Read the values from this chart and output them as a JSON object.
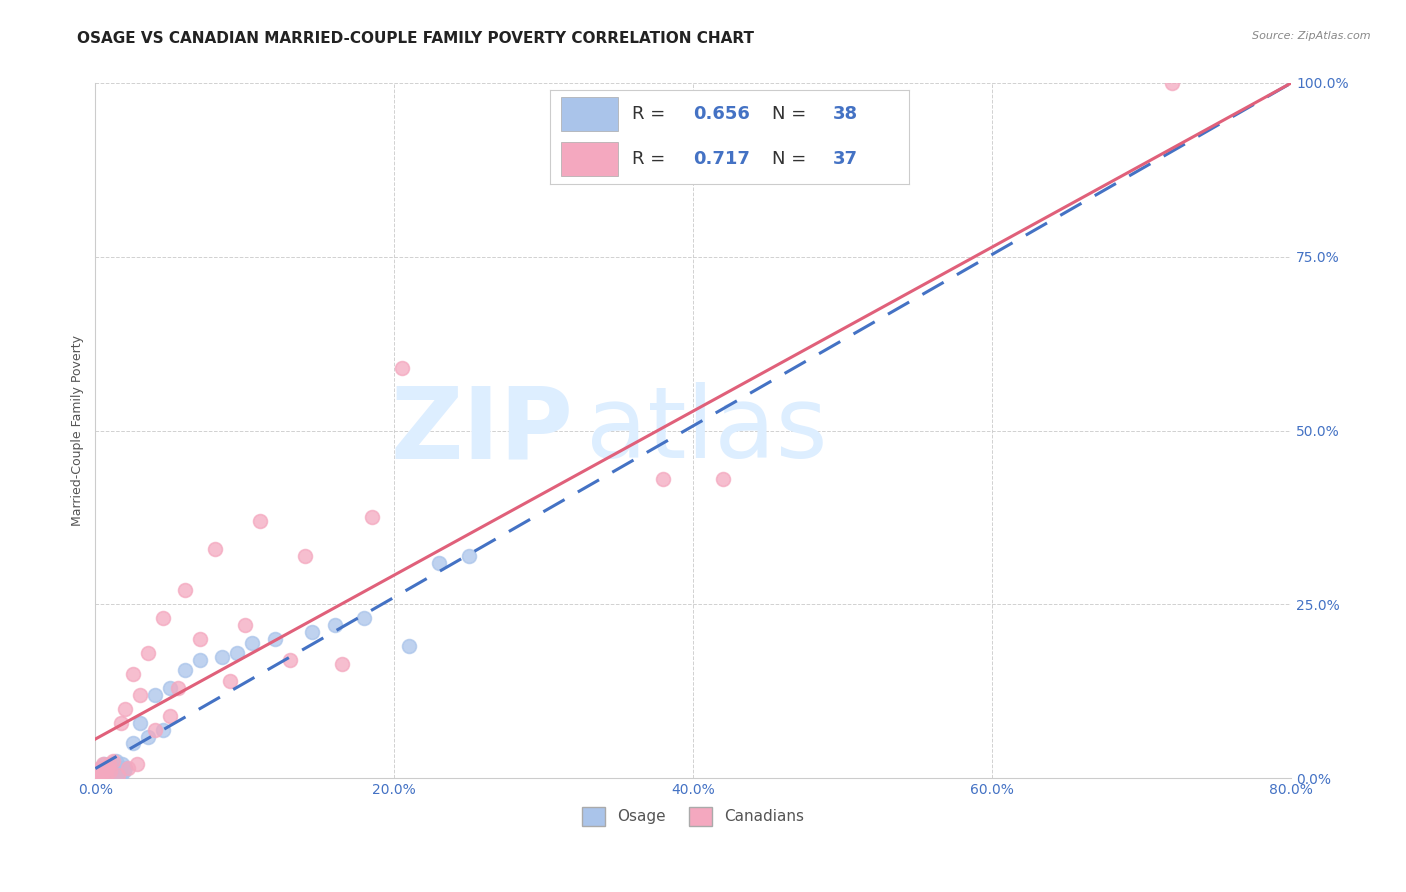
{
  "title": "OSAGE VS CANADIAN MARRIED-COUPLE FAMILY POVERTY CORRELATION CHART",
  "source": "Source: ZipAtlas.com",
  "ylabel": "Married-Couple Family Poverty",
  "xlim": [
    0.0,
    0.8
  ],
  "ylim": [
    0.0,
    1.0
  ],
  "xtick_labels": [
    "0.0%",
    "20.0%",
    "40.0%",
    "60.0%",
    "80.0%"
  ],
  "xtick_vals": [
    0.0,
    0.2,
    0.4,
    0.6,
    0.8
  ],
  "ytick_labels": [
    "0.0%",
    "25.0%",
    "50.0%",
    "75.0%",
    "100.0%"
  ],
  "ytick_vals": [
    0.0,
    0.25,
    0.5,
    0.75,
    1.0
  ],
  "osage_R": 0.656,
  "osage_N": 38,
  "canadian_R": 0.717,
  "canadian_N": 37,
  "osage_color": "#aac4ea",
  "canadian_color": "#f4a8bf",
  "osage_line_color": "#4472c4",
  "canadian_line_color": "#e0607a",
  "watermark_zip": "ZIP",
  "watermark_atlas": "atlas",
  "watermark_color": "#ddeeff",
  "background_color": "#ffffff",
  "grid_color": "#cccccc",
  "osage_x": [
    0.001,
    0.002,
    0.003,
    0.004,
    0.005,
    0.006,
    0.007,
    0.008,
    0.009,
    0.01,
    0.011,
    0.012,
    0.013,
    0.014,
    0.015,
    0.016,
    0.017,
    0.018,
    0.019,
    0.02,
    0.025,
    0.03,
    0.035,
    0.04,
    0.045,
    0.05,
    0.06,
    0.07,
    0.085,
    0.095,
    0.105,
    0.12,
    0.145,
    0.16,
    0.18,
    0.21,
    0.23,
    0.25
  ],
  "osage_y": [
    0.005,
    0.01,
    0.005,
    0.015,
    0.005,
    0.02,
    0.01,
    0.005,
    0.015,
    0.01,
    0.02,
    0.015,
    0.005,
    0.025,
    0.01,
    0.015,
    0.005,
    0.02,
    0.01,
    0.015,
    0.05,
    0.08,
    0.06,
    0.12,
    0.07,
    0.13,
    0.155,
    0.17,
    0.175,
    0.18,
    0.195,
    0.2,
    0.21,
    0.22,
    0.23,
    0.19,
    0.31,
    0.32
  ],
  "canadian_x": [
    0.001,
    0.002,
    0.003,
    0.004,
    0.005,
    0.006,
    0.007,
    0.008,
    0.009,
    0.01,
    0.012,
    0.015,
    0.017,
    0.02,
    0.022,
    0.025,
    0.028,
    0.03,
    0.035,
    0.04,
    0.045,
    0.05,
    0.055,
    0.06,
    0.07,
    0.08,
    0.09,
    0.1,
    0.11,
    0.13,
    0.14,
    0.165,
    0.185,
    0.205,
    0.38,
    0.42,
    0.72
  ],
  "canadian_y": [
    0.005,
    0.01,
    0.015,
    0.005,
    0.02,
    0.01,
    0.005,
    0.015,
    0.02,
    0.01,
    0.025,
    0.005,
    0.08,
    0.1,
    0.015,
    0.15,
    0.02,
    0.12,
    0.18,
    0.07,
    0.23,
    0.09,
    0.13,
    0.27,
    0.2,
    0.33,
    0.14,
    0.22,
    0.37,
    0.17,
    0.32,
    0.165,
    0.375,
    0.59,
    0.43,
    0.43,
    1.0
  ],
  "title_fontsize": 11,
  "axis_label_fontsize": 9,
  "tick_fontsize": 10,
  "legend_fontsize": 13
}
